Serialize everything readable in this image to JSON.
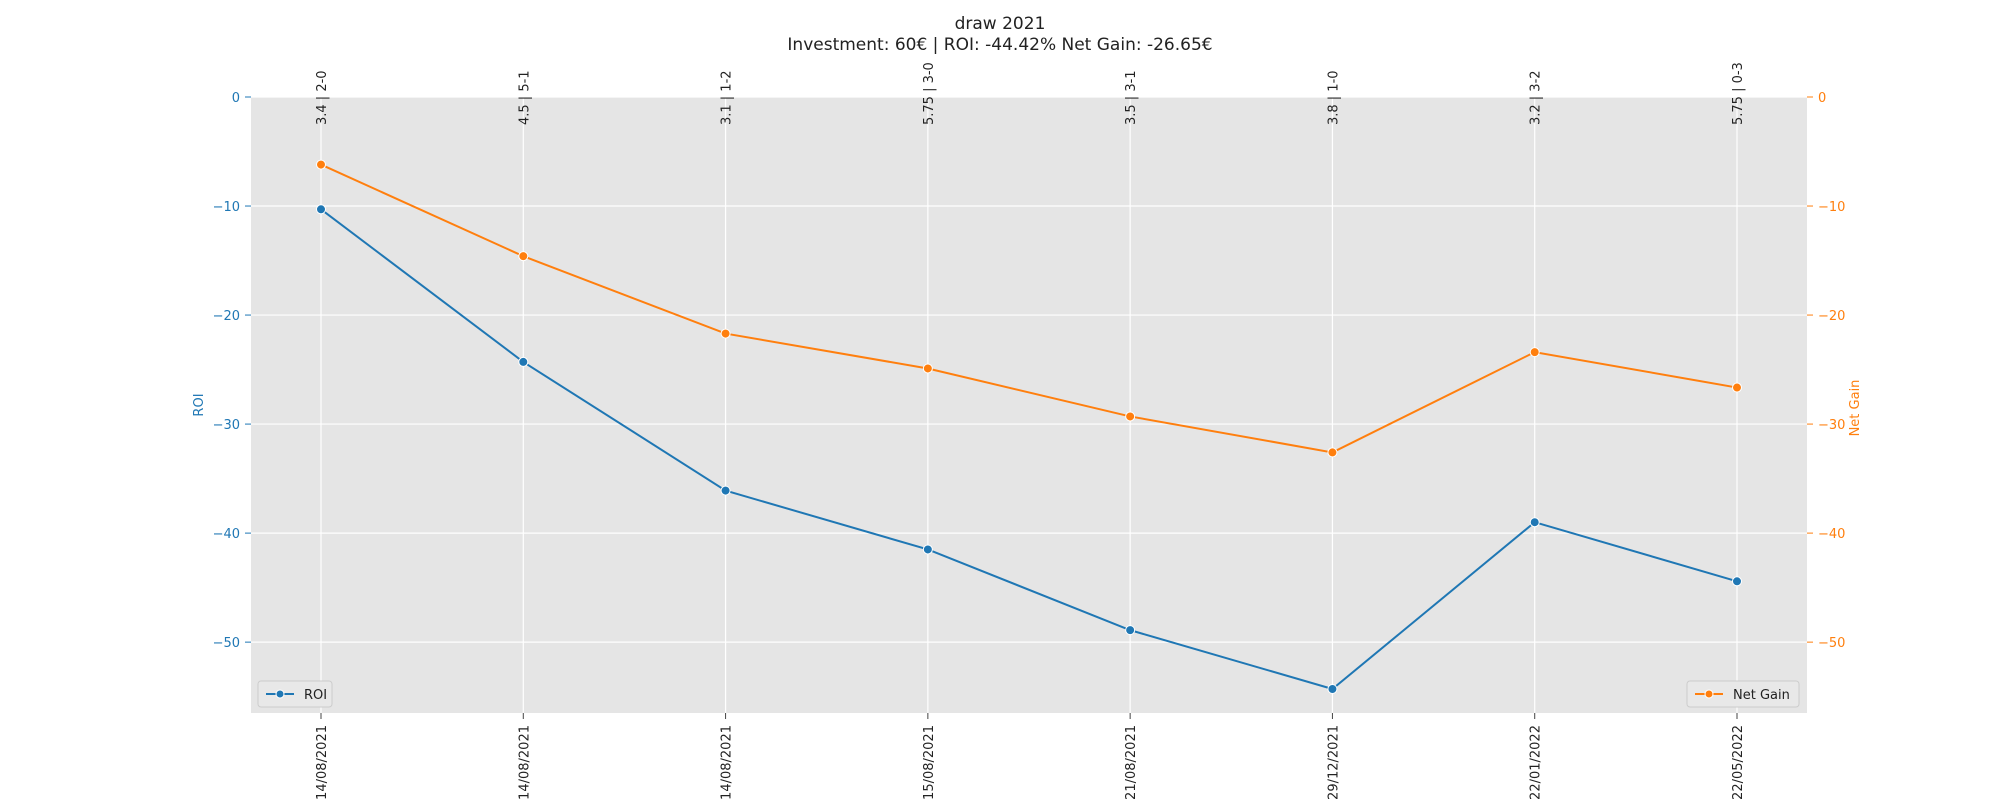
{
  "chart_data": {
    "type": "line",
    "title": "draw 2021",
    "subtitle": "Investment: 60€ | ROI: -44.42% Net Gain: -26.65€",
    "x_bottom_labels": [
      "14/08/2021",
      "14/08/2021",
      "14/08/2021",
      "15/08/2021",
      "21/08/2021",
      "29/12/2021",
      "22/01/2022",
      "22/05/2022"
    ],
    "x_top_labels": [
      "3.4 | 2-0",
      "4.5 | 5-1",
      "3.1 | 1-2",
      "5.75 | 3-0",
      "3.5 | 3-1",
      "3.8 | 1-0",
      "3.2 | 3-2",
      "5.75 | 0-3"
    ],
    "series": [
      {
        "name": "ROI",
        "axis": "left",
        "color": "#1f77b4",
        "values": [
          -10.3,
          -24.3,
          -36.1,
          -41.5,
          -48.9,
          -54.3,
          -39.0,
          -44.42
        ]
      },
      {
        "name": "Net Gain",
        "axis": "right",
        "color": "#ff7f0e",
        "values": [
          -6.2,
          -14.6,
          -21.7,
          -24.9,
          -29.3,
          -32.6,
          -23.4,
          -26.65
        ]
      }
    ],
    "ylabel_left": "ROI",
    "ylabel_right": "Net Gain",
    "ylim_left": [
      -56.5,
      0
    ],
    "ylim_right": [
      -56.5,
      0
    ],
    "yticks_left": [
      0,
      -10,
      -20,
      -30,
      -40,
      -50
    ],
    "yticks_right": [
      0,
      -10,
      -20,
      -30,
      -40,
      -50
    ],
    "grid": true,
    "legend_left_position": "lower-left",
    "legend_right_position": "lower-right",
    "plot_background": "#e5e5e5"
  }
}
